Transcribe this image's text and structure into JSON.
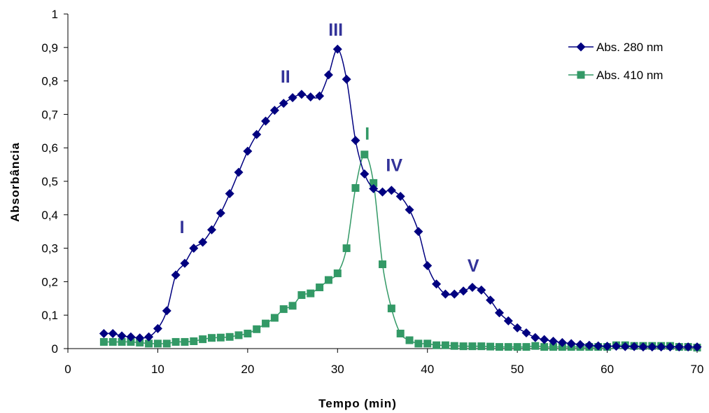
{
  "chart_data": {
    "type": "line",
    "xlabel": "Tempo (min)",
    "ylabel": "Absorbância",
    "xlim": [
      0,
      70
    ],
    "ylim": [
      0,
      1
    ],
    "xticks": [
      "0",
      "10",
      "20",
      "30",
      "40",
      "50",
      "60",
      "70"
    ],
    "yticks": [
      "0",
      "0,1",
      "0,2",
      "0,3",
      "0,4",
      "0,5",
      "0,6",
      "0,7",
      "0,8",
      "0,9",
      "1"
    ],
    "grid": false,
    "legend_position": "top-right",
    "series": [
      {
        "name": "Abs. 280 nm",
        "color": "#000080",
        "marker": "diamond",
        "x": [
          4,
          5,
          6,
          7,
          8,
          9,
          10,
          11,
          12,
          13,
          14,
          15,
          16,
          17,
          18,
          19,
          20,
          21,
          22,
          23,
          24,
          25,
          26,
          27,
          28,
          29,
          30,
          31,
          32,
          33,
          34,
          35,
          36,
          37,
          38,
          39,
          40,
          41,
          42,
          43,
          44,
          45,
          46,
          47,
          48,
          49,
          50,
          51,
          52,
          53,
          54,
          55,
          56,
          57,
          58,
          59,
          60,
          61,
          62,
          63,
          64,
          65,
          66,
          67,
          68,
          69,
          70
        ],
        "y": [
          0.045,
          0.045,
          0.038,
          0.035,
          0.032,
          0.035,
          0.06,
          0.113,
          0.22,
          0.255,
          0.3,
          0.318,
          0.355,
          0.405,
          0.463,
          0.527,
          0.59,
          0.64,
          0.68,
          0.712,
          0.733,
          0.75,
          0.76,
          0.752,
          0.755,
          0.818,
          0.895,
          0.805,
          0.622,
          0.522,
          0.478,
          0.468,
          0.473,
          0.455,
          0.415,
          0.35,
          0.248,
          0.193,
          0.163,
          0.163,
          0.172,
          0.183,
          0.175,
          0.145,
          0.107,
          0.083,
          0.062,
          0.047,
          0.033,
          0.027,
          0.022,
          0.018,
          0.015,
          0.012,
          0.01,
          0.008,
          0.007,
          0.007,
          0.006,
          0.006,
          0.005,
          0.005,
          0.005,
          0.005,
          0.005,
          0.005,
          0.005
        ]
      },
      {
        "name": "Abs. 410 nm",
        "color": "#339966",
        "marker": "square",
        "x": [
          4,
          5,
          6,
          7,
          8,
          9,
          10,
          11,
          12,
          13,
          14,
          15,
          16,
          17,
          18,
          19,
          20,
          21,
          22,
          23,
          24,
          25,
          26,
          27,
          28,
          29,
          30,
          31,
          32,
          33,
          34,
          35,
          36,
          37,
          38,
          39,
          40,
          41,
          42,
          43,
          44,
          45,
          46,
          47,
          48,
          49,
          50,
          51,
          52,
          53,
          54,
          55,
          56,
          57,
          58,
          59,
          60,
          61,
          62,
          63,
          64,
          65,
          66,
          67,
          68,
          69,
          70
        ],
        "y": [
          0.02,
          0.02,
          0.02,
          0.02,
          0.018,
          0.015,
          0.015,
          0.015,
          0.02,
          0.02,
          0.022,
          0.028,
          0.032,
          0.033,
          0.035,
          0.04,
          0.045,
          0.058,
          0.075,
          0.092,
          0.118,
          0.128,
          0.16,
          0.165,
          0.183,
          0.205,
          0.225,
          0.3,
          0.48,
          0.58,
          0.495,
          0.252,
          0.12,
          0.045,
          0.025,
          0.015,
          0.015,
          0.01,
          0.01,
          0.008,
          0.007,
          0.007,
          0.007,
          0.006,
          0.005,
          0.005,
          0.005,
          0.005,
          0.008,
          0.005,
          0.005,
          0.005,
          0.005,
          0.005,
          0.005,
          0.005,
          0.005,
          0.01,
          0.01,
          0.008,
          0.008,
          0.008,
          0.008,
          0.008,
          0.005,
          0.005,
          0.003
        ]
      }
    ],
    "annotations": [
      {
        "text": "I",
        "x": 12.7,
        "y": 0.345,
        "color": "#333399"
      },
      {
        "text": "II",
        "x": 24.2,
        "y": 0.795,
        "color": "#333399"
      },
      {
        "text": "III",
        "x": 29.8,
        "y": 0.935,
        "color": "#333399"
      },
      {
        "text": "I",
        "x": 33.3,
        "y": 0.625,
        "color": "#339966"
      },
      {
        "text": "IV",
        "x": 36.3,
        "y": 0.53,
        "color": "#333399"
      },
      {
        "text": "V",
        "x": 45.1,
        "y": 0.23,
        "color": "#333399"
      }
    ]
  }
}
